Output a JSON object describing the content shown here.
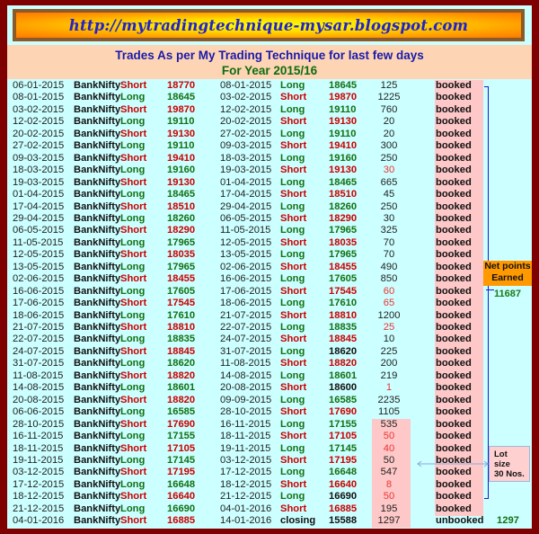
{
  "banner": {
    "url_text": "http://mytradingtechnique-mysar.blogspot.com"
  },
  "header": {
    "title": "Trades As per My Trading Technique for last few days",
    "subtitle": "For Year 2015/16"
  },
  "colors": {
    "short": "#cc0000",
    "long": "#137013",
    "neutral": "#111111",
    "points_red": "#ee3333",
    "border": "#7f0000",
    "table_bg": "#ccffff",
    "highlight": "#ffc8c8"
  },
  "summary": {
    "net_points_label_1": "Net points",
    "net_points_label_2": "Earned",
    "net_points": "11687",
    "lot_label_1": "Lot",
    "lot_label_2": "size",
    "lot_label_3": "30 Nos."
  },
  "trades": [
    {
      "entry_date": "06-01-2015",
      "symbol": "BankNifty",
      "entry_side": "Short",
      "entry_price": "18770",
      "exit_date": "08-01-2015",
      "exit_side": "Long",
      "exit_price": "18645",
      "points": "125",
      "status": "booked"
    },
    {
      "entry_date": "08-01-2015",
      "symbol": "BankNifty",
      "entry_side": "Long",
      "entry_price": "18645",
      "exit_date": "03-02-2015",
      "exit_side": "Short",
      "exit_price": "19870",
      "points": "1225",
      "status": "booked"
    },
    {
      "entry_date": "03-02-2015",
      "symbol": "BankNifty",
      "entry_side": "Short",
      "entry_price": "19870",
      "exit_date": "12-02-2015",
      "exit_side": "Long",
      "exit_price": "19110",
      "points": "760",
      "status": "booked"
    },
    {
      "entry_date": "12-02-2015",
      "symbol": "BankNifty",
      "entry_side": "Long",
      "entry_price": "19110",
      "exit_date": "20-02-2015",
      "exit_side": "Short",
      "exit_price": "19130",
      "points": "20",
      "status": "booked"
    },
    {
      "entry_date": "20-02-2015",
      "symbol": "BankNifty",
      "entry_side": "Short",
      "entry_price": "19130",
      "exit_date": "27-02-2015",
      "exit_side": "Long",
      "exit_price": "19110",
      "points": "20",
      "status": "booked"
    },
    {
      "entry_date": "27-02-2015",
      "symbol": "BankNifty",
      "entry_side": "Long",
      "entry_price": "19110",
      "exit_date": "09-03-2015",
      "exit_side": "Short",
      "exit_price": "19410",
      "points": "300",
      "status": "booked"
    },
    {
      "entry_date": "09-03-2015",
      "symbol": "BankNifty",
      "entry_side": "Short",
      "entry_price": "19410",
      "exit_date": "18-03-2015",
      "exit_side": "Long",
      "exit_price": "19160",
      "points": "250",
      "status": "booked"
    },
    {
      "entry_date": "18-03-2015",
      "symbol": "BankNifty",
      "entry_side": "Long",
      "entry_price": "19160",
      "exit_date": "19-03-2015",
      "exit_side": "Short",
      "exit_price": "19130",
      "points": "30",
      "status": "booked",
      "points_red": true
    },
    {
      "entry_date": "19-03-2015",
      "symbol": "BankNifty",
      "entry_side": "Short",
      "entry_price": "19130",
      "exit_date": "01-04-2015",
      "exit_side": "Long",
      "exit_price": "18465",
      "points": "665",
      "status": "booked"
    },
    {
      "entry_date": "01-04-2015",
      "symbol": "BankNifty",
      "entry_side": "Long",
      "entry_price": "18465",
      "exit_date": "17-04-2015",
      "exit_side": "Short",
      "exit_price": "18510",
      "points": "45",
      "status": "booked"
    },
    {
      "entry_date": "17-04-2015",
      "symbol": "BankNifty",
      "entry_side": "Short",
      "entry_price": "18510",
      "exit_date": "29-04-2015",
      "exit_side": "Long",
      "exit_price": "18260",
      "points": "250",
      "status": "booked"
    },
    {
      "entry_date": "29-04-2015",
      "symbol": "BankNifty",
      "entry_side": "Long",
      "entry_price": "18260",
      "exit_date": "06-05-2015",
      "exit_side": "Short",
      "exit_price": "18290",
      "points": "30",
      "status": "booked"
    },
    {
      "entry_date": "06-05-2015",
      "symbol": "BankNifty",
      "entry_side": "Short",
      "entry_price": "18290",
      "exit_date": "11-05-2015",
      "exit_side": "Long",
      "exit_price": "17965",
      "points": "325",
      "status": "booked"
    },
    {
      "entry_date": "11-05-2015",
      "symbol": "BankNifty",
      "entry_side": "Long",
      "entry_price": "17965",
      "exit_date": "12-05-2015",
      "exit_side": "Short",
      "exit_price": "18035",
      "points": "70",
      "status": "booked"
    },
    {
      "entry_date": "12-05-2015",
      "symbol": "BankNifty",
      "entry_side": "Short",
      "entry_price": "18035",
      "exit_date": "13-05-2015",
      "exit_side": "Long",
      "exit_price": "17965",
      "points": "70",
      "status": "booked"
    },
    {
      "entry_date": "13-05-2015",
      "symbol": "BankNifty",
      "entry_side": "Long",
      "entry_price": "17965",
      "exit_date": "02-06-2015",
      "exit_side": "Short",
      "exit_price": "18455",
      "points": "490",
      "status": "booked"
    },
    {
      "entry_date": "02-06-2015",
      "symbol": "BankNifty",
      "entry_side": "Short",
      "entry_price": "18455",
      "exit_date": "16-06-2015",
      "exit_side": "Long",
      "exit_price": "17605",
      "points": "850",
      "status": "booked"
    },
    {
      "entry_date": "16-06-2015",
      "symbol": "BankNifty",
      "entry_side": "Long",
      "entry_price": "17605",
      "exit_date": "17-06-2015",
      "exit_side": "Short",
      "exit_price": "17545",
      "points": "60",
      "status": "booked",
      "points_red": true
    },
    {
      "entry_date": "17-06-2015",
      "symbol": "BankNifty",
      "entry_side": "Short",
      "entry_price": "17545",
      "exit_date": "18-06-2015",
      "exit_side": "Long",
      "exit_price": "17610",
      "points": "65",
      "status": "booked",
      "points_red": true
    },
    {
      "entry_date": "18-06-2015",
      "symbol": "BankNifty",
      "entry_side": "Long",
      "entry_price": "17610",
      "exit_date": "21-07-2015",
      "exit_side": "Short",
      "exit_price": "18810",
      "points": "1200",
      "status": "booked"
    },
    {
      "entry_date": "21-07-2015",
      "symbol": "BankNifty",
      "entry_side": "Short",
      "entry_price": "18810",
      "exit_date": "22-07-2015",
      "exit_side": "Long",
      "exit_price": "18835",
      "points": "25",
      "status": "booked",
      "points_red": true
    },
    {
      "entry_date": "22-07-2015",
      "symbol": "BankNifty",
      "entry_side": "Long",
      "entry_price": "18835",
      "exit_date": "24-07-2015",
      "exit_side": "Short",
      "exit_price": "18845",
      "points": "10",
      "status": "booked"
    },
    {
      "entry_date": "24-07-2015",
      "symbol": "BankNifty",
      "entry_side": "Short",
      "entry_price": "18845",
      "exit_date": "31-07-2015",
      "exit_side": "Long",
      "exit_price": "18620",
      "points": "225",
      "status": "booked",
      "exit_price_black": true
    },
    {
      "entry_date": "31-07-2015",
      "symbol": "BankNifty",
      "entry_side": "Long",
      "entry_price": "18620",
      "exit_date": "11-08-2015",
      "exit_side": "Short",
      "exit_price": "18820",
      "points": "200",
      "status": "booked"
    },
    {
      "entry_date": "11-08-2015",
      "symbol": "BankNifty",
      "entry_side": "Short",
      "entry_price": "18820",
      "exit_date": "14-08-2015",
      "exit_side": "Long",
      "exit_price": "18601",
      "points": "219",
      "status": "booked"
    },
    {
      "entry_date": "14-08-2015",
      "symbol": "BankNifty",
      "entry_side": "Long",
      "entry_price": "18601",
      "exit_date": "20-08-2015",
      "exit_side": "Short",
      "exit_price": "18600",
      "points": "1",
      "status": "booked",
      "points_red": true,
      "exit_price_black": true
    },
    {
      "entry_date": "20-08-2015",
      "symbol": "BankNifty",
      "entry_side": "Short",
      "entry_price": "18820",
      "exit_date": "09-09-2015",
      "exit_side": "Long",
      "exit_price": "16585",
      "points": "2235",
      "status": "booked"
    },
    {
      "entry_date": "06-06-2015",
      "symbol": "BankNifty",
      "entry_side": "Long",
      "entry_price": "16585",
      "exit_date": "28-10-2015",
      "exit_side": "Short",
      "exit_price": "17690",
      "points": "1105",
      "status": "booked"
    },
    {
      "entry_date": "28-10-2015",
      "symbol": "BankNifty",
      "entry_side": "Short",
      "entry_price": "17690",
      "exit_date": "16-11-2015",
      "exit_side": "Long",
      "exit_price": "17155",
      "points": "535",
      "status": "booked",
      "points_highlight": true
    },
    {
      "entry_date": "16-11-2015",
      "symbol": "BankNifty",
      "entry_side": "Long",
      "entry_price": "17155",
      "exit_date": "18-11-2015",
      "exit_side": "Short",
      "exit_price": "17105",
      "points": "50",
      "status": "booked",
      "points_red": true,
      "points_highlight": true
    },
    {
      "entry_date": "18-11-2015",
      "symbol": "BankNifty",
      "entry_side": "Short",
      "entry_price": "17105",
      "exit_date": "19-11-2015",
      "exit_side": "Long",
      "exit_price": "17145",
      "points": "40",
      "status": "booked",
      "points_red": true,
      "points_highlight": true
    },
    {
      "entry_date": "19-11-2015",
      "symbol": "BankNifty",
      "entry_side": "Long",
      "entry_price": "17145",
      "exit_date": "03-12-2015",
      "exit_side": "Short",
      "exit_price": "17195",
      "points": "50",
      "status": "booked",
      "points_highlight": true
    },
    {
      "entry_date": "03-12-2015",
      "symbol": "BankNifty",
      "entry_side": "Short",
      "entry_price": "17195",
      "exit_date": "17-12-2015",
      "exit_side": "Long",
      "exit_price": "16648",
      "points": "547",
      "status": "booked",
      "points_highlight": true
    },
    {
      "entry_date": "17-12-2015",
      "symbol": "BankNifty",
      "entry_side": "Long",
      "entry_price": "16648",
      "exit_date": "18-12-2015",
      "exit_side": "Short",
      "exit_price": "16640",
      "points": "8",
      "status": "booked",
      "points_red": true,
      "points_highlight": true
    },
    {
      "entry_date": "18-12-2015",
      "symbol": "BankNifty",
      "entry_side": "Short",
      "entry_price": "16640",
      "exit_date": "21-12-2015",
      "exit_side": "Long",
      "exit_price": "16690",
      "points": "50",
      "status": "booked",
      "points_red": true,
      "points_highlight": true,
      "exit_price_black": true
    },
    {
      "entry_date": "21-12-2015",
      "symbol": "BankNifty",
      "entry_side": "Long",
      "entry_price": "16690",
      "exit_date": "04-01-2016",
      "exit_side": "Short",
      "exit_price": "16885",
      "points": "195",
      "status": "booked",
      "points_highlight": true
    },
    {
      "entry_date": "04-01-2016",
      "symbol": "BankNifty",
      "entry_side": "Short",
      "entry_price": "16885",
      "exit_date": "14-01-2016",
      "exit_side": "closing",
      "exit_price": "15588",
      "points": "1297",
      "status": "unbooked",
      "points_highlight": true,
      "exit_price_black": true,
      "open_points": "1297"
    }
  ]
}
